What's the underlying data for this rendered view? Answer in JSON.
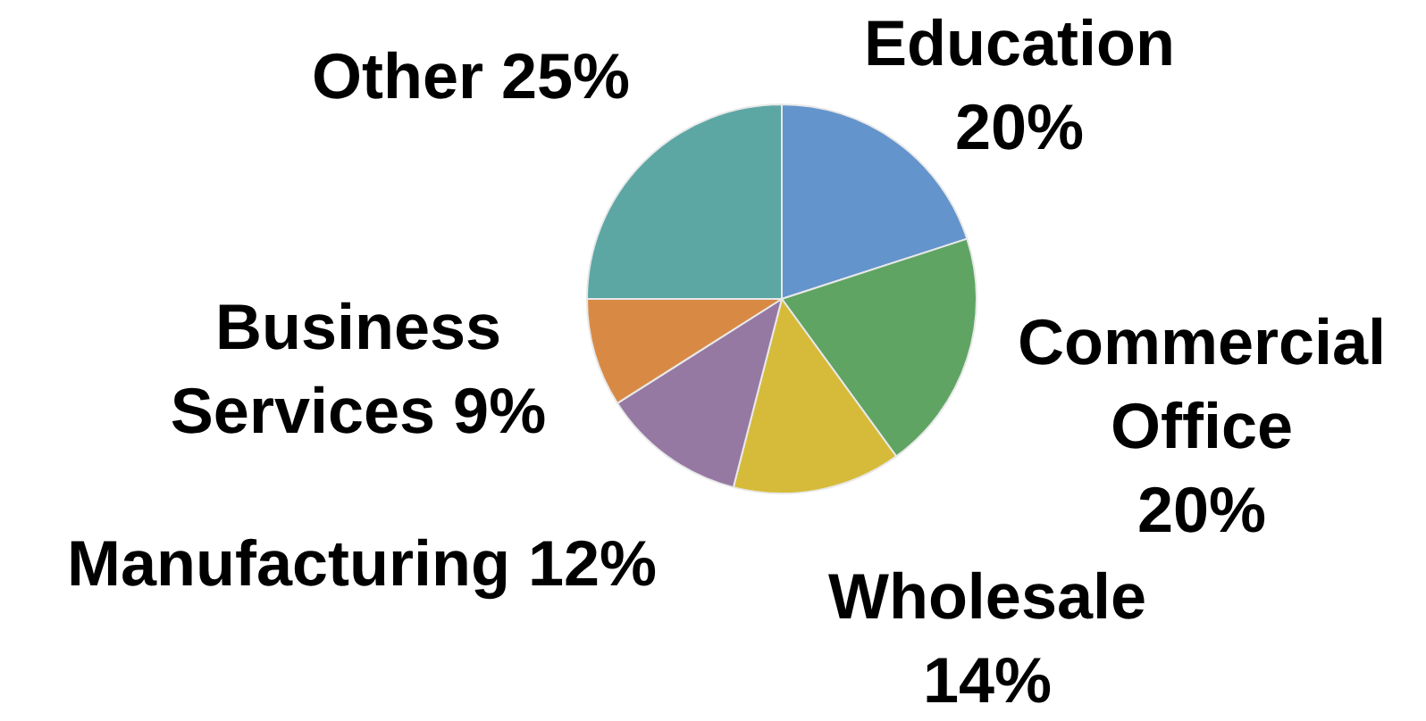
{
  "chart_data": {
    "type": "pie",
    "categories": [
      "Education",
      "Commercial Office",
      "Wholesale",
      "Manufacturing",
      "Business Services",
      "Other"
    ],
    "values": [
      20,
      20,
      14,
      12,
      9,
      25
    ],
    "value_labels": [
      "20%",
      "20%",
      "14%",
      "12%",
      "9%",
      "25%"
    ],
    "colors": [
      "#6494cc",
      "#5fa463",
      "#d6bb3a",
      "#9579a3",
      "#d88a45",
      "#5ca7a4"
    ],
    "legend": false
  }
}
